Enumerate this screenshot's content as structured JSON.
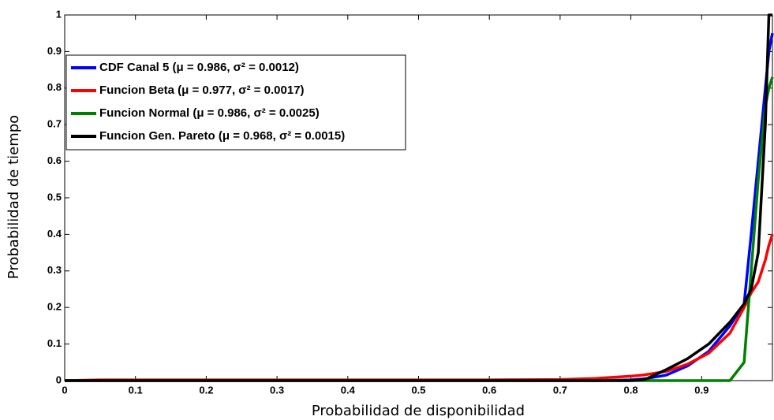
{
  "chart_data": {
    "type": "line",
    "xlabel": "Probabilidad de disponibilidad",
    "ylabel": "Probabilidad de tiempo",
    "x": [
      0,
      0.05,
      0.1,
      0.2,
      0.3,
      0.4,
      0.5,
      0.6,
      0.7,
      0.75,
      0.8,
      0.82,
      0.85,
      0.88,
      0.91,
      0.94,
      0.96,
      0.97,
      0.98,
      0.99,
      0.995,
      1
    ],
    "series": [
      {
        "name": "CDF Canal 5 (μ = 0.986, σ² = 0.0012)",
        "color": "#0000ff",
        "values": [
          0,
          0,
          0,
          0,
          0,
          0,
          0,
          0,
          0,
          0,
          0.002,
          0.005,
          0.015,
          0.04,
          0.08,
          0.15,
          0.21,
          0.4,
          0.6,
          0.8,
          0.9,
          0.95
        ]
      },
      {
        "name": "Funcion Beta (μ = 0.977, σ² = 0.0017)",
        "color": "#ff0000",
        "values": [
          0,
          0.002,
          0.002,
          0.002,
          0.002,
          0.002,
          0.002,
          0.002,
          0.003,
          0.006,
          0.012,
          0.016,
          0.025,
          0.045,
          0.075,
          0.13,
          0.2,
          0.24,
          0.27,
          0.33,
          0.37,
          0.4
        ]
      },
      {
        "name": "Funcion Normal (μ = 0.986, σ² = 0.0025)",
        "color": "#008000",
        "values": [
          0,
          0,
          0,
          0,
          0,
          0,
          0,
          0,
          0,
          0,
          0,
          0,
          0,
          0,
          0,
          0,
          0.05,
          0.3,
          0.55,
          0.75,
          0.8,
          0.83
        ]
      },
      {
        "name": "Funcion Gen. Pareto (μ = 0.968, σ² = 0.0015)",
        "color": "#000000",
        "values": [
          0,
          0,
          0,
          0,
          0,
          0,
          0,
          0,
          0,
          0,
          0,
          0.003,
          0.03,
          0.06,
          0.1,
          0.16,
          0.21,
          0.25,
          0.35,
          0.7,
          1,
          1
        ]
      }
    ],
    "xlim": [
      0,
      1
    ],
    "xticks": [
      0,
      0.1,
      0.2,
      0.3,
      0.4,
      0.5,
      0.6,
      0.7,
      0.8,
      0.9
    ],
    "ylim": [
      0,
      1
    ],
    "yticks": [
      0,
      0.1,
      0.2,
      0.3,
      0.4,
      0.5,
      0.6,
      0.7,
      0.8,
      0.9,
      1
    ],
    "grid": false,
    "legend": "upper-left"
  }
}
